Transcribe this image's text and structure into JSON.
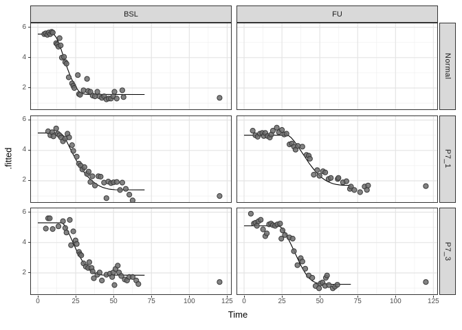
{
  "figure": {
    "xlabel": "Time",
    "ylabel": ".fitted",
    "col_labels": [
      "BSL",
      "FU"
    ],
    "row_labels": [
      "Normal",
      "P7_1",
      "P7_3"
    ]
  },
  "colors": {
    "strip_fill": "#d9d9d9",
    "panel_border": "#333333",
    "grid_major": "#e4e4e4",
    "grid_minor": "#f1f1f1",
    "tick_label": "#4d4d4d",
    "point_fill": "#6d6d6d",
    "point_stroke": "#383838",
    "fitted_line": "#000000"
  },
  "chart_data": {
    "type": "scatter",
    "title": "",
    "xlabel": "Time",
    "ylabel": ".fitted",
    "facet_cols": [
      "BSL",
      "FU"
    ],
    "facet_rows": [
      "Normal",
      "P7_1",
      "P7_3"
    ],
    "xlim": [
      -5,
      128
    ],
    "ylim": [
      0.55,
      6.3
    ],
    "x_major": [
      0,
      25,
      50,
      75,
      100,
      125
    ],
    "x_minor": [
      12.5,
      37.5,
      62.5,
      87.5,
      112.5
    ],
    "y_major": [
      2,
      4,
      6
    ],
    "y_minor": [
      1,
      3,
      5
    ],
    "grid": true,
    "legend": "none",
    "panels": [
      {
        "col": "BSL",
        "row": "Normal",
        "points": [
          [
            4.2,
            5.55
          ],
          [
            5.2,
            5.6
          ],
          [
            6.3,
            5.5
          ],
          [
            7.2,
            5.65
          ],
          [
            8.2,
            5.55
          ],
          [
            9.1,
            5.7
          ],
          [
            9.9,
            5.65
          ],
          [
            12.1,
            4.95
          ],
          [
            12.8,
            4.87
          ],
          [
            13.6,
            4.72
          ],
          [
            14.4,
            5.28
          ],
          [
            15.1,
            4.8
          ],
          [
            15.9,
            4.0
          ],
          [
            17.3,
            4.05
          ],
          [
            18.1,
            3.7
          ],
          [
            18.9,
            3.6
          ],
          [
            20.4,
            2.7
          ],
          [
            22.6,
            2.3
          ],
          [
            23.4,
            2.15
          ],
          [
            24.1,
            2.0
          ],
          [
            26.4,
            2.85
          ],
          [
            27.2,
            1.6
          ],
          [
            27.9,
            1.55
          ],
          [
            30.2,
            1.85
          ],
          [
            32.5,
            2.6
          ],
          [
            33.2,
            1.8
          ],
          [
            34.7,
            1.75
          ],
          [
            36.2,
            1.5
          ],
          [
            37.7,
            1.45
          ],
          [
            39.3,
            1.75
          ],
          [
            40.7,
            1.45
          ],
          [
            42.3,
            1.35
          ],
          [
            43.8,
            1.45
          ],
          [
            45.3,
            1.25
          ],
          [
            46.8,
            1.3
          ],
          [
            48.3,
            1.3
          ],
          [
            49.8,
            1.45
          ],
          [
            50.6,
            1.75
          ],
          [
            52.1,
            1.3
          ],
          [
            55.8,
            1.85
          ],
          [
            56.6,
            1.4
          ],
          [
            120,
            1.35
          ]
        ],
        "curve": [
          [
            0,
            5.55
          ],
          [
            10.5,
            5.55
          ],
          [
            12,
            5.35
          ],
          [
            13.5,
            5.05
          ],
          [
            15,
            4.65
          ],
          [
            16.5,
            4.2
          ],
          [
            18,
            3.75
          ],
          [
            19.5,
            3.3
          ],
          [
            21,
            2.9
          ],
          [
            22.5,
            2.55
          ],
          [
            24,
            2.25
          ],
          [
            25.5,
            2.0
          ],
          [
            27,
            1.8
          ],
          [
            28.5,
            1.68
          ],
          [
            30,
            1.62
          ],
          [
            32,
            1.58
          ],
          [
            70.5,
            1.57
          ]
        ]
      },
      {
        "col": "FU",
        "row": "Normal",
        "points": [],
        "curve": []
      },
      {
        "col": "BSL",
        "row": "P7_1",
        "points": [
          [
            6.8,
            5.26
          ],
          [
            8.3,
            5.0
          ],
          [
            9.5,
            5.2
          ],
          [
            10.3,
            4.93
          ],
          [
            12.1,
            5.45
          ],
          [
            13.2,
            5.1
          ],
          [
            14.3,
            5.0
          ],
          [
            15.4,
            4.85
          ],
          [
            16.6,
            4.6
          ],
          [
            18,
            4.78
          ],
          [
            19.6,
            5.1
          ],
          [
            20.7,
            4.86
          ],
          [
            22.6,
            4.35
          ],
          [
            23.4,
            3.97
          ],
          [
            25.7,
            3.59
          ],
          [
            27.2,
            3.13
          ],
          [
            28.3,
            3.0
          ],
          [
            29.4,
            2.75
          ],
          [
            30.8,
            2.9
          ],
          [
            32.5,
            2.45
          ],
          [
            33.6,
            2.6
          ],
          [
            34.7,
            1.92
          ],
          [
            36,
            2.3
          ],
          [
            37.7,
            1.69
          ],
          [
            40,
            2.3
          ],
          [
            41.5,
            2.27
          ],
          [
            43.7,
            1.88
          ],
          [
            45.3,
            0.86
          ],
          [
            46.5,
            1.95
          ],
          [
            48.3,
            1.85
          ],
          [
            50,
            1.9
          ],
          [
            52.1,
            1.92
          ],
          [
            54.3,
            1.39
          ],
          [
            55.8,
            1.88
          ],
          [
            58.1,
            1.47
          ],
          [
            60.4,
            1.09
          ],
          [
            62.6,
            0.71
          ],
          [
            120,
            1.0
          ]
        ],
        "curve": [
          [
            0,
            5.15
          ],
          [
            15,
            5.15
          ],
          [
            17,
            4.95
          ],
          [
            19,
            4.6
          ],
          [
            21,
            4.2
          ],
          [
            23,
            3.8
          ],
          [
            25,
            3.42
          ],
          [
            27,
            3.08
          ],
          [
            29,
            2.78
          ],
          [
            31,
            2.5
          ],
          [
            33,
            2.27
          ],
          [
            35,
            2.07
          ],
          [
            37,
            1.9
          ],
          [
            39,
            1.76
          ],
          [
            41,
            1.65
          ],
          [
            43,
            1.56
          ],
          [
            45,
            1.5
          ],
          [
            47,
            1.45
          ],
          [
            49,
            1.43
          ],
          [
            51,
            1.41
          ],
          [
            70.5,
            1.4
          ]
        ]
      },
      {
        "col": "FU",
        "row": "P7_1",
        "points": [
          [
            5.7,
            5.3
          ],
          [
            7.5,
            5.0
          ],
          [
            9,
            4.9
          ],
          [
            10.5,
            5.1
          ],
          [
            12,
            5.15
          ],
          [
            13,
            4.95
          ],
          [
            14,
            5.15
          ],
          [
            15.5,
            4.95
          ],
          [
            17,
            4.85
          ],
          [
            18,
            5.05
          ],
          [
            19,
            5.3
          ],
          [
            21.6,
            5.5
          ],
          [
            23,
            5.2
          ],
          [
            25,
            5.35
          ],
          [
            26.5,
            5.05
          ],
          [
            28,
            5.1
          ],
          [
            30,
            4.4
          ],
          [
            31.5,
            4.45
          ],
          [
            33,
            4.25
          ],
          [
            34,
            4.05
          ],
          [
            35.5,
            4.3
          ],
          [
            38.5,
            4.25
          ],
          [
            41.2,
            3.7
          ],
          [
            42.7,
            3.65
          ],
          [
            43.5,
            3.45
          ],
          [
            46,
            2.4
          ],
          [
            48.3,
            2.7
          ],
          [
            49.8,
            2.33
          ],
          [
            52.1,
            2.63
          ],
          [
            53.6,
            2.55
          ],
          [
            55.8,
            2.12
          ],
          [
            57.3,
            2.19
          ],
          [
            61.8,
            2.12
          ],
          [
            62.3,
            2.19
          ],
          [
            65.3,
            1.9
          ],
          [
            67.6,
            1.97
          ],
          [
            69.9,
            1.47
          ],
          [
            70.6,
            1.62
          ],
          [
            72.8,
            1.39
          ],
          [
            76.6,
            1.25
          ],
          [
            79.6,
            1.62
          ],
          [
            81.1,
            1.4
          ],
          [
            81.9,
            1.69
          ],
          [
            120,
            1.65
          ]
        ],
        "curve": [
          [
            0,
            5.0
          ],
          [
            29,
            5.0
          ],
          [
            31,
            4.85
          ],
          [
            33,
            4.62
          ],
          [
            35,
            4.35
          ],
          [
            37,
            4.05
          ],
          [
            39,
            3.75
          ],
          [
            41,
            3.45
          ],
          [
            43,
            3.15
          ],
          [
            45,
            2.88
          ],
          [
            47,
            2.63
          ],
          [
            49,
            2.42
          ],
          [
            51,
            2.23
          ],
          [
            53,
            2.08
          ],
          [
            55,
            1.96
          ],
          [
            57,
            1.87
          ],
          [
            59,
            1.8
          ],
          [
            61,
            1.76
          ],
          [
            63,
            1.73
          ],
          [
            65,
            1.71
          ],
          [
            70.5,
            1.7
          ]
        ]
      },
      {
        "col": "BSL",
        "row": "P7_3",
        "points": [
          [
            5.3,
            4.92
          ],
          [
            6.8,
            5.6
          ],
          [
            7.9,
            5.6
          ],
          [
            9.8,
            4.89
          ],
          [
            13.6,
            5.07
          ],
          [
            16.6,
            5.41
          ],
          [
            18.1,
            4.96
          ],
          [
            18.9,
            4.66
          ],
          [
            21.1,
            5.49
          ],
          [
            21.9,
            3.83
          ],
          [
            23.4,
            4.74
          ],
          [
            24.9,
            4.14
          ],
          [
            25.7,
            3.91
          ],
          [
            27.2,
            3.38
          ],
          [
            27.9,
            3.23
          ],
          [
            28.7,
            3.16
          ],
          [
            30.2,
            2.63
          ],
          [
            31.7,
            2.41
          ],
          [
            33.2,
            2.33
          ],
          [
            34,
            2.71
          ],
          [
            35.5,
            2.33
          ],
          [
            36.2,
            2.1
          ],
          [
            37,
            1.65
          ],
          [
            39.3,
            1.88
          ],
          [
            40.8,
            2.03
          ],
          [
            42.3,
            1.5
          ],
          [
            45.3,
            1.88
          ],
          [
            47.6,
            1.95
          ],
          [
            49.1,
            1.73
          ],
          [
            49.8,
            2.03
          ],
          [
            50.6,
            1.2
          ],
          [
            51.3,
            2.26
          ],
          [
            52.8,
            2.48
          ],
          [
            53.6,
            2.03
          ],
          [
            55.1,
            1.8
          ],
          [
            57.4,
            1.57
          ],
          [
            58.9,
            1.5
          ],
          [
            60.4,
            1.73
          ],
          [
            62.6,
            1.73
          ],
          [
            65,
            1.5
          ],
          [
            66.4,
            1.27
          ],
          [
            120,
            1.4
          ]
        ],
        "curve": [
          [
            0,
            5.3
          ],
          [
            16,
            5.3
          ],
          [
            17.5,
            5.15
          ],
          [
            19,
            4.9
          ],
          [
            21,
            4.5
          ],
          [
            23,
            4.05
          ],
          [
            25,
            3.6
          ],
          [
            27,
            3.2
          ],
          [
            29,
            2.85
          ],
          [
            31,
            2.55
          ],
          [
            33,
            2.3
          ],
          [
            35,
            2.12
          ],
          [
            37,
            2.0
          ],
          [
            39,
            1.92
          ],
          [
            41,
            1.88
          ],
          [
            43,
            1.86
          ],
          [
            70.5,
            1.85
          ]
        ]
      },
      {
        "col": "FU",
        "row": "P7_3",
        "points": [
          [
            4.5,
            5.9
          ],
          [
            6.5,
            5.25
          ],
          [
            7.5,
            5.3
          ],
          [
            8.5,
            5.1
          ],
          [
            9.5,
            5.4
          ],
          [
            11,
            5.5
          ],
          [
            12.5,
            4.87
          ],
          [
            14,
            4.42
          ],
          [
            15,
            4.6
          ],
          [
            16.5,
            5.2
          ],
          [
            17.8,
            5.25
          ],
          [
            19,
            5.15
          ],
          [
            20.5,
            5.1
          ],
          [
            22,
            5.2
          ],
          [
            23.8,
            5.25
          ],
          [
            24.6,
            4.26
          ],
          [
            25.4,
            4.8
          ],
          [
            27,
            4.5
          ],
          [
            29.9,
            4.34
          ],
          [
            32.1,
            4.26
          ],
          [
            32.9,
            3.43
          ],
          [
            35.2,
            2.51
          ],
          [
            37.4,
            2.97
          ],
          [
            38.5,
            2.75
          ],
          [
            40.4,
            2.28
          ],
          [
            42.7,
            1.83
          ],
          [
            45,
            1.68
          ],
          [
            47.2,
            1.14
          ],
          [
            49.5,
            0.99
          ],
          [
            50.5,
            1.3
          ],
          [
            51.8,
            1.37
          ],
          [
            53.5,
            1.15
          ],
          [
            54,
            1.68
          ],
          [
            54.8,
            1.83
          ],
          [
            56,
            1.2
          ],
          [
            58.6,
            0.99
          ],
          [
            60,
            1.1
          ],
          [
            61.6,
            1.22
          ],
          [
            120,
            1.4
          ]
        ],
        "curve": [
          [
            0,
            5.1
          ],
          [
            23,
            5.1
          ],
          [
            25,
            4.95
          ],
          [
            27,
            4.65
          ],
          [
            29,
            4.28
          ],
          [
            31,
            3.88
          ],
          [
            33,
            3.45
          ],
          [
            35,
            3.02
          ],
          [
            37,
            2.6
          ],
          [
            39,
            2.22
          ],
          [
            41,
            1.9
          ],
          [
            43,
            1.65
          ],
          [
            45,
            1.48
          ],
          [
            47,
            1.37
          ],
          [
            49,
            1.3
          ],
          [
            51,
            1.27
          ],
          [
            54,
            1.25
          ],
          [
            70.5,
            1.25
          ]
        ]
      }
    ]
  }
}
